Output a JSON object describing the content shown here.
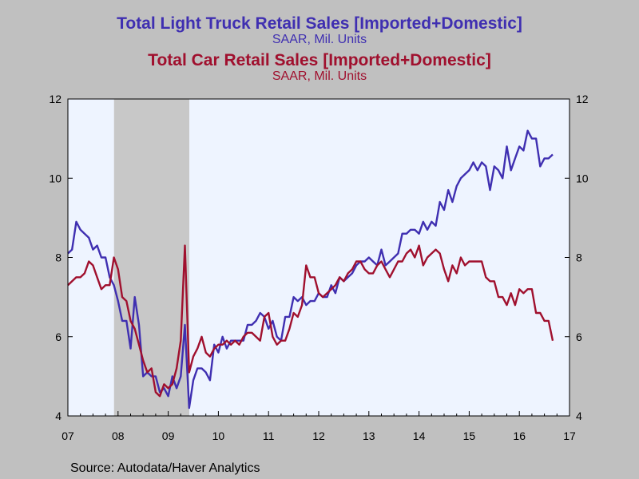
{
  "chart_data": {
    "type": "line",
    "titles": [
      {
        "title": "Total Light Truck Retail Sales [Imported+Domestic]",
        "subtitle": "SAAR, Mil. Units",
        "color": "#3f2fb1"
      },
      {
        "title": "Total Car Retail Sales [Imported+Domestic]",
        "subtitle": "SAAR, Mil. Units",
        "color": "#a0102e"
      }
    ],
    "x_ticks": [
      "07",
      "08",
      "09",
      "10",
      "11",
      "12",
      "13",
      "14",
      "15",
      "16",
      "17"
    ],
    "xlim": [
      2007.0,
      2017.0
    ],
    "ylim": [
      4,
      12
    ],
    "y_ticks": [
      "4",
      "6",
      "8",
      "10",
      "12"
    ],
    "recession": [
      2007.92,
      2009.42
    ],
    "plot_bg": "#eef4ff",
    "recession_color": "#c8c8c8",
    "series": [
      {
        "color": "#3f2fb1",
        "x_start": 2007.0,
        "x_step": 0.08333,
        "values": [
          8.1,
          8.2,
          8.9,
          8.7,
          8.6,
          8.5,
          8.2,
          8.3,
          8.0,
          8.0,
          7.5,
          7.3,
          6.9,
          6.4,
          6.4,
          5.7,
          7.0,
          6.3,
          5.0,
          5.1,
          5.0,
          5.0,
          4.6,
          4.7,
          4.5,
          5.0,
          4.7,
          5.0,
          6.3,
          4.2,
          4.9,
          5.2,
          5.2,
          5.1,
          4.9,
          5.8,
          5.6,
          6.0,
          5.7,
          5.9,
          5.9,
          5.9,
          5.9,
          6.3,
          6.3,
          6.4,
          6.6,
          6.5,
          6.2,
          6.4,
          6.0,
          5.9,
          6.5,
          6.5,
          7.0,
          6.9,
          7.0,
          6.8,
          6.9,
          6.9,
          7.1,
          7.0,
          7.0,
          7.3,
          7.1,
          7.5,
          7.4,
          7.5,
          7.6,
          7.8,
          7.9,
          7.9,
          8.0,
          7.9,
          7.8,
          8.2,
          7.8,
          7.9,
          8.0,
          8.1,
          8.6,
          8.6,
          8.7,
          8.7,
          8.6,
          8.9,
          8.7,
          8.9,
          8.8,
          9.4,
          9.2,
          9.7,
          9.4,
          9.8,
          10.0,
          10.1,
          10.2,
          10.4,
          10.2,
          10.4,
          10.3,
          9.7,
          10.3,
          10.2,
          10.0,
          10.8,
          10.2,
          10.5,
          10.8,
          10.7,
          11.2,
          11.0,
          11.0,
          10.3,
          10.5,
          10.5,
          10.6
        ]
      },
      {
        "color": "#a0102e",
        "x_start": 2007.0,
        "x_step": 0.08333,
        "values": [
          7.3,
          7.4,
          7.5,
          7.5,
          7.6,
          7.9,
          7.8,
          7.5,
          7.2,
          7.3,
          7.3,
          8.0,
          7.7,
          7.0,
          6.9,
          6.4,
          6.2,
          5.8,
          5.4,
          5.1,
          5.2,
          4.6,
          4.5,
          4.8,
          4.7,
          4.8,
          5.2,
          5.9,
          8.3,
          5.1,
          5.5,
          5.7,
          6.0,
          5.6,
          5.5,
          5.7,
          5.8,
          5.8,
          5.9,
          5.8,
          5.9,
          5.8,
          6.0,
          6.1,
          6.1,
          6.0,
          5.9,
          6.5,
          6.6,
          6.0,
          5.8,
          5.9,
          5.9,
          6.2,
          6.6,
          6.5,
          6.8,
          7.8,
          7.5,
          7.5,
          7.1,
          7.0,
          7.1,
          7.2,
          7.3,
          7.5,
          7.4,
          7.6,
          7.7,
          7.9,
          7.9,
          7.7,
          7.6,
          7.6,
          7.8,
          7.9,
          7.7,
          7.5,
          7.7,
          7.9,
          7.9,
          8.1,
          8.2,
          8.0,
          8.3,
          7.8,
          8.0,
          8.1,
          8.2,
          8.1,
          7.7,
          7.4,
          7.8,
          7.6,
          8.0,
          7.8,
          7.9,
          7.9,
          7.9,
          7.9,
          7.5,
          7.4,
          7.4,
          7.0,
          7.0,
          6.8,
          7.1,
          6.8,
          7.2,
          7.1,
          7.2,
          7.2,
          6.6,
          6.6,
          6.4,
          6.4,
          5.9
        ]
      }
    ]
  },
  "source": "Source:  Autodata/Haver Analytics"
}
